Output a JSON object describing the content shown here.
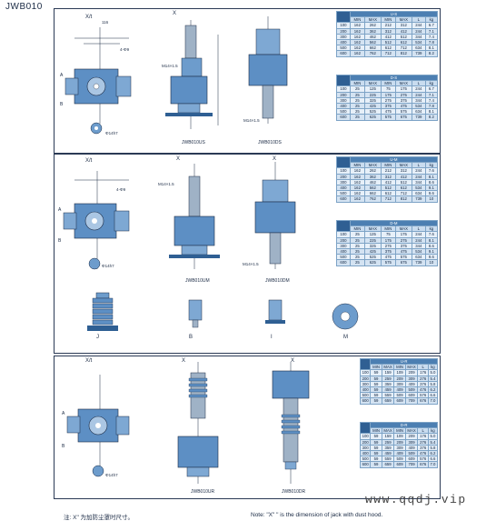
{
  "page": {
    "title": "JWB010"
  },
  "sections": {
    "us": {
      "captions": [
        "JWB010US",
        "JWB010DS"
      ],
      "view_labels": [
        "X/t",
        "X"
      ],
      "table_top": {
        "ratio_label": "U-S",
        "columns": [
          "",
          "",
          "",
          "",
          "",
          "",
          ""
        ],
        "rows": [
          [
            "100",
            "162",
            "262",
            "212",
            "312",
            "244",
            "6.7"
          ],
          [
            "200",
            "162",
            "362",
            "312",
            "412",
            "244",
            "7.1"
          ],
          [
            "300",
            "162",
            "462",
            "412",
            "512",
            "344",
            "7.4"
          ],
          [
            "400",
            "162",
            "562",
            "512",
            "612",
            "534",
            "7.8"
          ],
          [
            "500",
            "162",
            "662",
            "612",
            "712",
            "634",
            "8.1"
          ],
          [
            "600",
            "162",
            "762",
            "712",
            "812",
            "739",
            "8.2"
          ]
        ]
      },
      "table_bottom": {
        "ratio_label": "D-S",
        "columns": [
          "",
          "",
          "",
          "",
          "",
          "",
          ""
        ],
        "rows": [
          [
            "100",
            "25",
            "125",
            "75",
            "175",
            "244",
            "6.7"
          ],
          [
            "200",
            "25",
            "225",
            "175",
            "275",
            "244",
            "7.1"
          ],
          [
            "300",
            "25",
            "325",
            "275",
            "375",
            "344",
            "7.4"
          ],
          [
            "400",
            "25",
            "425",
            "375",
            "475",
            "534",
            "7.8"
          ],
          [
            "500",
            "25",
            "525",
            "475",
            "575",
            "634",
            "8.1"
          ],
          [
            "600",
            "25",
            "625",
            "575",
            "675",
            "739",
            "8.2"
          ]
        ]
      }
    },
    "um": {
      "captions": [
        "JWB010UM",
        "JWB010DM"
      ],
      "view_labels": [
        "X/t",
        "X",
        "X"
      ],
      "table_top": {
        "ratio_label": "U-M",
        "rows": [
          [
            "100",
            "162",
            "262",
            "212",
            "312",
            "244",
            "7.6"
          ],
          [
            "200",
            "162",
            "362",
            "312",
            "412",
            "244",
            "8.1"
          ],
          [
            "300",
            "162",
            "462",
            "412",
            "512",
            "344",
            "8.6"
          ],
          [
            "400",
            "162",
            "562",
            "512",
            "612",
            "534",
            "9.1"
          ],
          [
            "500",
            "162",
            "662",
            "612",
            "712",
            "634",
            "9.6"
          ],
          [
            "600",
            "162",
            "762",
            "712",
            "812",
            "739",
            "10"
          ]
        ]
      },
      "table_bottom": {
        "ratio_label": "D-M",
        "rows": [
          [
            "100",
            "25",
            "125",
            "75",
            "175",
            "244",
            "7.6"
          ],
          [
            "200",
            "25",
            "225",
            "175",
            "275",
            "244",
            "8.1"
          ],
          [
            "300",
            "25",
            "325",
            "275",
            "375",
            "344",
            "8.6"
          ],
          [
            "400",
            "25",
            "425",
            "375",
            "475",
            "534",
            "9.1"
          ],
          [
            "500",
            "25",
            "525",
            "475",
            "575",
            "634",
            "9.6"
          ],
          [
            "600",
            "25",
            "625",
            "575",
            "675",
            "739",
            "10"
          ]
        ]
      }
    },
    "accessories": {
      "labels": [
        "J",
        "B",
        "I",
        "M"
      ]
    },
    "ur": {
      "captions": [
        "JWB010UR",
        "JWB010DR"
      ],
      "view_labels": [
        "X/t",
        "X",
        "X"
      ],
      "table_top": {
        "ratio_label": "U-R",
        "rows": [
          [
            "100",
            "59",
            "159",
            "109",
            "209",
            "176",
            "5.0"
          ],
          [
            "200",
            "59",
            "259",
            "209",
            "309",
            "276",
            "5.4"
          ],
          [
            "300",
            "59",
            "359",
            "309",
            "409",
            "376",
            "5.8"
          ],
          [
            "400",
            "59",
            "459",
            "409",
            "509",
            "476",
            "6.2"
          ],
          [
            "500",
            "59",
            "559",
            "509",
            "609",
            "576",
            "6.6"
          ],
          [
            "600",
            "59",
            "659",
            "609",
            "709",
            "676",
            "7.0"
          ]
        ]
      },
      "table_bottom": {
        "ratio_label": "D-R",
        "rows": [
          [
            "100",
            "59",
            "159",
            "109",
            "209",
            "176",
            "5.0"
          ],
          [
            "200",
            "59",
            "259",
            "209",
            "309",
            "276",
            "5.4"
          ],
          [
            "300",
            "59",
            "359",
            "309",
            "409",
            "376",
            "5.8"
          ],
          [
            "400",
            "59",
            "459",
            "409",
            "509",
            "476",
            "6.2"
          ],
          [
            "500",
            "59",
            "559",
            "509",
            "609",
            "576",
            "6.6"
          ],
          [
            "600",
            "59",
            "659",
            "609",
            "709",
            "676",
            "7.0"
          ]
        ]
      }
    }
  },
  "table_head": {
    "stroke": "",
    "a": "X",
    "b": "Y",
    "col_min": "MIN",
    "col_max": "MAX",
    "col_l": "L",
    "col_kg": "kg"
  },
  "footer": {
    "note_cn": "注: X\" 为加防尘罩时尺寸。",
    "note_en": "Note: \"X\" \" is the dimension of jack with dust hood."
  },
  "watermark": "www.qqdj.vip",
  "colors": {
    "accent": "#2f5f93",
    "body": "#5d8fc4",
    "shaft": "#9fb2c6",
    "line": "#1a2a44"
  }
}
